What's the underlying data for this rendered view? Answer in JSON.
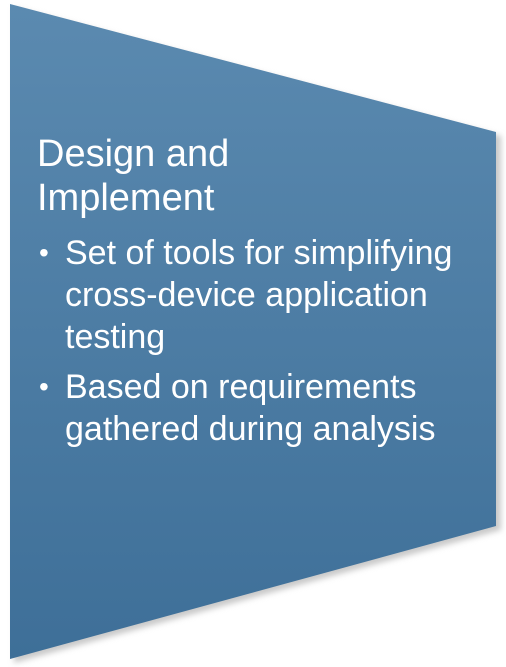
{
  "shape": {
    "fill_top": "#5b8ab0",
    "fill_bottom": "#3e6f98",
    "shadow": "#c9c9c9"
  },
  "heading": "Design and Implement",
  "bullets": [
    {
      "bullet": "•",
      "text": "Set of tools for simplifying cross-device application testing"
    },
    {
      "bullet": "•",
      "text": "Based on requirements gathered during analysis"
    }
  ]
}
